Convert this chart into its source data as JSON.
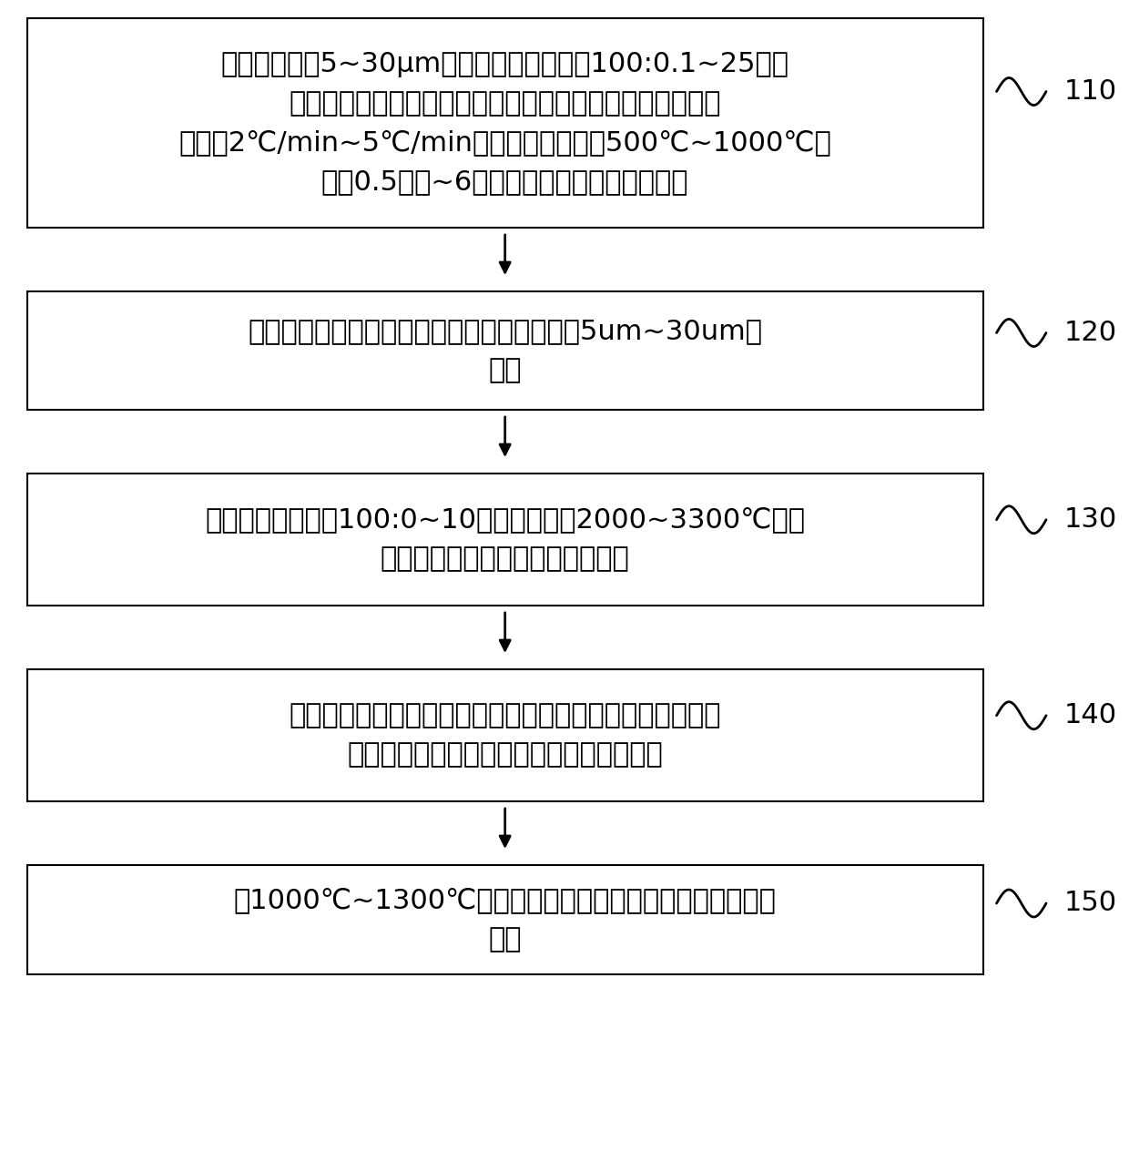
{
  "background_color": "#ffffff",
  "box_edge_color": "#000000",
  "box_fill_color": "#ffffff",
  "arrow_color": "#000000",
  "text_color": "#000000",
  "boxes": [
    {
      "id": 110,
      "label": "110",
      "text": "将平均粒径为5~30μm的碳材料与沥青粉按100:0.1~25的重\n量比混合均匀，采用卧式造粒釜进行造粒，在氮气氛围中由\n室温以2℃/min~5℃/min的升温速率升温至500℃~1000℃，\n保温0.5小时~6小时后降至室温，得到造粒料"
    },
    {
      "id": 120,
      "label": "120",
      "text": "将造粒料进行破碎分级处理，得到平均粒径为5um~30um整\n形料"
    },
    {
      "id": 130,
      "label": "130",
      "text": "将整形料与沥青按100:0~10混合均匀，在2000~3300℃进行\n石墨化处理，得到提纯的石墨化料"
    },
    {
      "id": 140,
      "label": "140",
      "text": "将提纯的石墨化料与聚合物粉末在含有羧甲基纤维素钠的水\n中分散均匀，将形成的悬浮液进行喷雾干燥"
    },
    {
      "id": 150,
      "label": "150",
      "text": "在1000℃~1300℃进行碳化处理，冷却后筛分得到石墨负极\n材料"
    }
  ],
  "fig_width": 12.4,
  "fig_height": 12.64,
  "dpi": 100
}
